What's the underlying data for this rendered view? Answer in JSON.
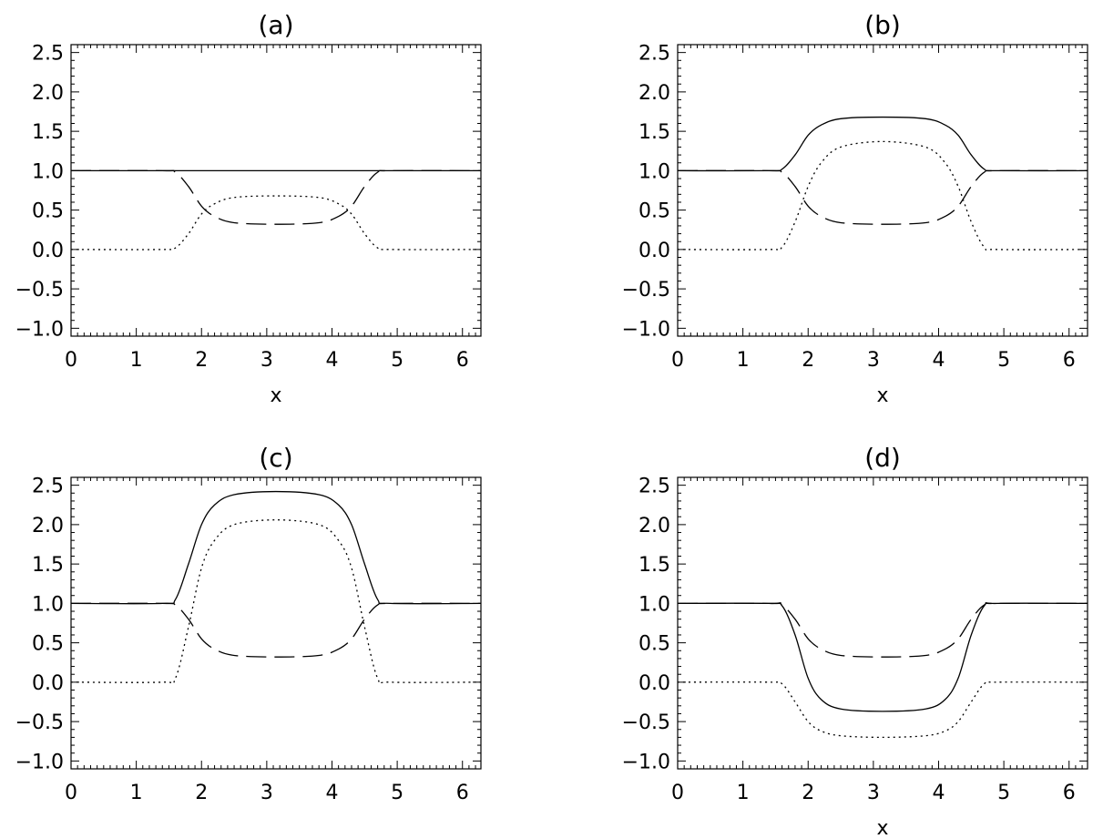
{
  "chart_data": [
    {
      "type": "line",
      "title": "(a)",
      "xlabel": "x",
      "ylabel": "",
      "xlim": [
        0,
        6.283
      ],
      "ylim": [
        -1.1,
        2.6
      ],
      "xticks": [
        "0",
        "1",
        "2",
        "3",
        "4",
        "5",
        "6"
      ],
      "yticks": [
        "2.5",
        "2.0",
        "1.5",
        "1.0",
        "0.5",
        "0.0",
        "-0.5",
        "-1.0"
      ],
      "grid": false,
      "legend": "none",
      "x": [
        0.0,
        1.4,
        1.6,
        1.8,
        2.0,
        2.2,
        2.5,
        3.14,
        3.8,
        4.1,
        4.3,
        4.5,
        4.7,
        4.9,
        6.283
      ],
      "series": [
        {
          "style": "solid",
          "values": [
            1.0,
            1.0,
            1.0,
            1.0,
            1.0,
            1.0,
            1.0,
            1.0,
            1.0,
            1.0,
            1.0,
            1.0,
            1.0,
            1.0,
            1.0
          ]
        },
        {
          "style": "dashed",
          "values": [
            1.0,
            1.0,
            0.98,
            0.8,
            0.55,
            0.42,
            0.34,
            0.32,
            0.34,
            0.42,
            0.55,
            0.8,
            0.98,
            1.0,
            1.0
          ]
        },
        {
          "style": "dotted",
          "values": [
            0.0,
            0.0,
            0.02,
            0.2,
            0.45,
            0.58,
            0.66,
            0.68,
            0.66,
            0.58,
            0.45,
            0.2,
            0.02,
            0.0,
            0.0
          ]
        }
      ]
    },
    {
      "type": "line",
      "title": "(b)",
      "xlabel": "x",
      "ylabel": "",
      "xlim": [
        0,
        6.283
      ],
      "ylim": [
        -1.1,
        2.6
      ],
      "xticks": [
        "0",
        "1",
        "2",
        "3",
        "4",
        "5",
        "6"
      ],
      "yticks": [
        "2.5",
        "2.0",
        "1.5",
        "1.0",
        "0.5",
        "0.0",
        "-0.5",
        "-1.0"
      ],
      "grid": false,
      "legend": "none",
      "x": [
        0.0,
        1.4,
        1.6,
        1.8,
        2.0,
        2.2,
        2.5,
        3.14,
        3.8,
        4.1,
        4.3,
        4.5,
        4.7,
        4.9,
        6.283
      ],
      "series": [
        {
          "style": "solid",
          "values": [
            1.0,
            1.0,
            1.02,
            1.2,
            1.45,
            1.58,
            1.66,
            1.68,
            1.66,
            1.58,
            1.45,
            1.2,
            1.02,
            1.0,
            1.0
          ]
        },
        {
          "style": "dashed",
          "values": [
            1.0,
            1.0,
            0.98,
            0.8,
            0.55,
            0.42,
            0.34,
            0.32,
            0.34,
            0.42,
            0.55,
            0.8,
            0.98,
            1.0,
            1.0
          ]
        },
        {
          "style": "dotted",
          "values": [
            0.0,
            0.0,
            0.03,
            0.35,
            0.8,
            1.1,
            1.3,
            1.37,
            1.3,
            1.1,
            0.8,
            0.35,
            0.03,
            0.0,
            0.0
          ]
        }
      ]
    },
    {
      "type": "line",
      "title": "(c)",
      "xlabel": "",
      "ylabel": "",
      "xlim": [
        0,
        6.283
      ],
      "ylim": [
        -1.1,
        2.6
      ],
      "xticks": [
        "0",
        "1",
        "2",
        "3",
        "4",
        "5",
        "6"
      ],
      "yticks": [
        "2.5",
        "2.0",
        "1.5",
        "1.0",
        "0.5",
        "0.0",
        "-0.5",
        "-1.0"
      ],
      "grid": false,
      "legend": "none",
      "x": [
        0.0,
        1.4,
        1.6,
        1.8,
        2.0,
        2.2,
        2.5,
        3.14,
        3.8,
        4.1,
        4.3,
        4.5,
        4.7,
        4.9,
        6.283
      ],
      "series": [
        {
          "style": "solid",
          "values": [
            1.0,
            1.0,
            1.05,
            1.5,
            2.0,
            2.25,
            2.38,
            2.42,
            2.38,
            2.25,
            2.0,
            1.5,
            1.05,
            1.0,
            1.0
          ]
        },
        {
          "style": "dashed",
          "values": [
            1.0,
            1.0,
            0.98,
            0.8,
            0.55,
            0.42,
            0.34,
            0.32,
            0.34,
            0.42,
            0.55,
            0.8,
            0.98,
            1.0,
            1.0
          ]
        },
        {
          "style": "dotted",
          "values": [
            0.0,
            0.0,
            0.05,
            0.7,
            1.45,
            1.8,
            2.0,
            2.06,
            2.0,
            1.8,
            1.45,
            0.7,
            0.05,
            0.0,
            0.0
          ]
        }
      ]
    },
    {
      "type": "line",
      "title": "(d)",
      "xlabel": "x",
      "ylabel": "",
      "xlim": [
        0,
        6.283
      ],
      "ylim": [
        -1.1,
        2.6
      ],
      "xticks": [
        "0",
        "1",
        "2",
        "3",
        "4",
        "5",
        "6"
      ],
      "yticks": [
        "2.5",
        "2.0",
        "1.5",
        "1.0",
        "0.5",
        "0.0",
        "-0.5",
        "-1.0"
      ],
      "grid": false,
      "legend": "none",
      "x": [
        0.0,
        1.4,
        1.6,
        1.8,
        2.0,
        2.2,
        2.5,
        3.14,
        3.8,
        4.1,
        4.3,
        4.5,
        4.7,
        4.9,
        6.283
      ],
      "series": [
        {
          "style": "solid",
          "values": [
            1.0,
            1.0,
            0.97,
            0.6,
            0.05,
            -0.22,
            -0.34,
            -0.37,
            -0.34,
            -0.22,
            0.05,
            0.6,
            0.97,
            1.0,
            1.0
          ]
        },
        {
          "style": "dashed",
          "values": [
            1.0,
            1.0,
            0.98,
            0.8,
            0.55,
            0.42,
            0.34,
            0.32,
            0.34,
            0.42,
            0.55,
            0.8,
            0.98,
            1.0,
            1.0
          ]
        },
        {
          "style": "dotted",
          "values": [
            0.0,
            0.0,
            -0.02,
            -0.25,
            -0.5,
            -0.62,
            -0.68,
            -0.7,
            -0.68,
            -0.62,
            -0.5,
            -0.25,
            -0.02,
            0.0,
            0.0
          ]
        }
      ]
    }
  ]
}
